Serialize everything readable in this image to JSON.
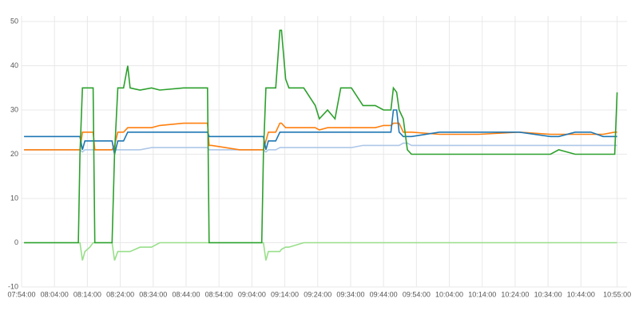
{
  "chart_data": {
    "type": "line",
    "x": [
      "07:54:45",
      "08:11:15",
      "08:11:45",
      "08:12:30",
      "08:13:15",
      "08:14:45",
      "08:15:45",
      "08:16:15",
      "08:21:30",
      "08:22:15",
      "08:23:15",
      "08:25:00",
      "08:26:15",
      "08:27:00",
      "08:30:00",
      "08:33:30",
      "08:36:00",
      "08:43:15",
      "08:50:30",
      "08:51:00",
      "08:51:45",
      "09:00:15",
      "09:07:00",
      "09:07:30",
      "09:08:15",
      "09:09:00",
      "09:11:15",
      "09:12:30",
      "09:13:00",
      "09:14:15",
      "09:15:15",
      "09:19:45",
      "09:23:15",
      "09:24:30",
      "09:27:00",
      "09:29:15",
      "09:31:00",
      "09:34:15",
      "09:37:45",
      "09:41:30",
      "09:44:00",
      "09:46:15",
      "09:47:00",
      "09:48:00",
      "09:48:45",
      "09:50:00",
      "09:51:15",
      "09:52:30",
      "10:01:00",
      "10:13:00",
      "10:25:15",
      "10:34:45",
      "10:37:15",
      "10:42:15",
      "10:47:00",
      "10:50:45",
      "10:54:15",
      "10:55:00"
    ],
    "series": [
      {
        "color": "#aec7e8",
        "values": [
          21,
          21,
          21,
          20.5,
          21,
          21,
          21,
          21,
          21,
          21,
          21,
          21,
          21,
          21,
          21,
          21.5,
          21.5,
          21.5,
          21.5,
          21,
          21,
          21,
          21,
          21,
          20.5,
          21,
          21,
          21.5,
          21.5,
          21.5,
          21.5,
          21.5,
          21.5,
          21.5,
          21.5,
          21.5,
          21.5,
          21.5,
          22,
          22,
          22,
          22,
          22,
          22,
          22,
          22.5,
          22.5,
          22,
          22,
          22,
          22,
          22,
          22,
          22,
          22,
          22,
          22,
          22
        ]
      },
      {
        "color": "#98df8a",
        "values": [
          0,
          0,
          0,
          -4,
          -2,
          -1,
          0,
          0,
          0,
          -4,
          -2,
          -2,
          -2,
          -2,
          -1,
          -1,
          0,
          0,
          0,
          0,
          0,
          0,
          0,
          0,
          -4,
          -2,
          -2,
          -2,
          -1.5,
          -1,
          -1,
          0,
          0,
          0,
          0,
          0,
          0,
          0,
          0,
          0,
          0,
          0,
          0,
          0,
          0,
          0,
          0,
          0,
          0,
          0,
          0,
          0,
          0,
          0,
          0,
          0,
          0,
          0
        ]
      },
      {
        "color": "#ff7f0e",
        "values": [
          21,
          21,
          21,
          25,
          25,
          25,
          25,
          21,
          21,
          22,
          25,
          25,
          26,
          26,
          26,
          26,
          26.5,
          27,
          27,
          22,
          22,
          21,
          21,
          21,
          23,
          25,
          25,
          27,
          27,
          26,
          26,
          26,
          26,
          25.5,
          26,
          26,
          26,
          26,
          26,
          26,
          26.5,
          26.5,
          27,
          27,
          27,
          25,
          25,
          25,
          24.5,
          24.5,
          25,
          24.5,
          24.5,
          24.5,
          24.5,
          24.5,
          25,
          25
        ]
      },
      {
        "color": "#1f77b4",
        "values": [
          24,
          24,
          24,
          21,
          23,
          23,
          23,
          23,
          23,
          20,
          23,
          23,
          25,
          25,
          25,
          25,
          25,
          25,
          25,
          24,
          24,
          24,
          24,
          24,
          21,
          23,
          23,
          25,
          25,
          25,
          25,
          25,
          25,
          25,
          25,
          25,
          25,
          25,
          25,
          25,
          25,
          25,
          30,
          30,
          25,
          24,
          24,
          24,
          25,
          25,
          25,
          24,
          24,
          25,
          25,
          24,
          24,
          24
        ]
      },
      {
        "color": "#2ca02c",
        "values": [
          0,
          0,
          20,
          35,
          35,
          35,
          35,
          0,
          0,
          20,
          35,
          35,
          40,
          35,
          34.5,
          35,
          34.5,
          35,
          35,
          0,
          0,
          0,
          0,
          20,
          35,
          35,
          35,
          48,
          48,
          37,
          35,
          35,
          31,
          28,
          30,
          28,
          35,
          35,
          31,
          31,
          30,
          30,
          35,
          34,
          30,
          28,
          21,
          20,
          20,
          20,
          20,
          20,
          21,
          20,
          20,
          20,
          20,
          34
        ]
      }
    ],
    "xlim": [
      "07:54:00",
      "10:58:00"
    ],
    "xticks": [
      "07:54:00",
      "08:04:00",
      "08:14:00",
      "08:24:00",
      "08:34:00",
      "08:44:00",
      "08:54:00",
      "09:04:00",
      "09:14:00",
      "09:24:00",
      "09:34:00",
      "09:44:00",
      "09:54:00",
      "10:04:00",
      "10:14:00",
      "10:24:00",
      "10:34:00",
      "10:44:00",
      "10:55:00"
    ],
    "ylim": [
      -10,
      50
    ],
    "yticks": [
      -10,
      0,
      10,
      20,
      30,
      40,
      50
    ],
    "grid": true
  }
}
